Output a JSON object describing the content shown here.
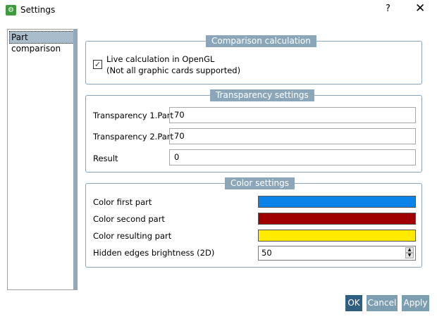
{
  "window": {
    "title": "Settings",
    "help_label": "?",
    "close_label": "✕"
  },
  "sidebar": {
    "items": [
      {
        "label": "Part comparison",
        "selected": true
      }
    ]
  },
  "comparison": {
    "legend": "Comparison calculation",
    "checkbox_checked": true,
    "line1": "Live calculation in OpenGL",
    "line2": "(Not all graphic cards supported)"
  },
  "transparency": {
    "legend": "Transparency settings",
    "rows": [
      {
        "label": "Transparency 1.Part",
        "value": "70"
      },
      {
        "label": "Transparency 2.Part",
        "value": "70"
      },
      {
        "label": "Result",
        "value": "0"
      }
    ]
  },
  "colors": {
    "legend": "Color settings",
    "first_label": "Color first part",
    "first_color": "#0a84e8",
    "second_label": "Color second part",
    "second_color": "#a00000",
    "result_label": "Color resulting part",
    "result_color": "#ffea00",
    "hidden_label": "Hidden edges brightness (2D)",
    "hidden_value": "50"
  },
  "buttons": {
    "ok": "OK",
    "cancel": "Cancel",
    "apply": "Apply"
  }
}
